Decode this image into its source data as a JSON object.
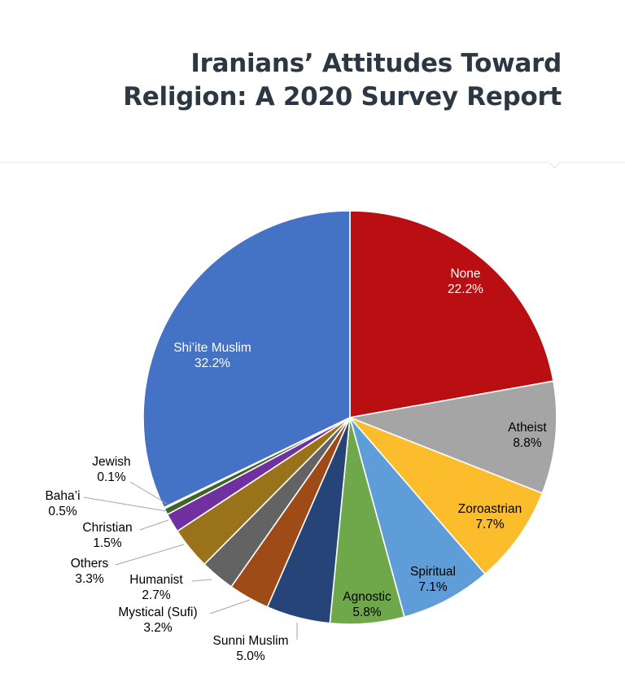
{
  "header": {
    "title_line1": "Iranians’ Attitudes Toward",
    "title_line2": "Religion: A 2020 Survey Report"
  },
  "chart_data": {
    "type": "pie",
    "title": "Iranians’ Attitudes Toward Religion: A 2020 Survey Report",
    "slices": [
      {
        "label": "None",
        "value": 22.2,
        "display": "22.2%",
        "color": "#b90e12",
        "label_color": "#ffffff"
      },
      {
        "label": "Atheist",
        "value": 8.8,
        "display": "8.8%",
        "color": "#a5a5a5",
        "label_color": "#000000"
      },
      {
        "label": "Zoroastrian",
        "value": 7.7,
        "display": "7.7%",
        "color": "#fbbd2c",
        "label_color": "#000000"
      },
      {
        "label": "Spiritual",
        "value": 7.1,
        "display": "7.1%",
        "color": "#5e9dd8",
        "label_color": "#000000"
      },
      {
        "label": "Agnostic",
        "value": 5.8,
        "display": "5.8%",
        "color": "#6fa84a",
        "label_color": "#000000"
      },
      {
        "label": "Sunni Muslim",
        "value": 5.0,
        "display": "5.0%",
        "color": "#264478",
        "label_color": "#000000"
      },
      {
        "label": "Mystical (Sufi)",
        "value": 3.2,
        "display": "3.2%",
        "color": "#9e4b18",
        "label_color": "#000000"
      },
      {
        "label": "Humanist",
        "value": 2.7,
        "display": "2.7%",
        "color": "#636363",
        "label_color": "#000000"
      },
      {
        "label": "Others",
        "value": 3.3,
        "display": "3.3%",
        "color": "#9a721a",
        "label_color": "#000000"
      },
      {
        "label": "Christian",
        "value": 1.5,
        "display": "1.5%",
        "color": "#7030a0",
        "label_color": "#000000"
      },
      {
        "label": "Baha’i",
        "value": 0.5,
        "display": "0.5%",
        "color": "#3f6427",
        "label_color": "#000000"
      },
      {
        "label": "Jewish",
        "value": 0.1,
        "display": "0.1%",
        "color": "#9ec3e6",
        "label_color": "#000000"
      },
      {
        "label": "Shi’ite Muslim",
        "value": 32.2,
        "display": "32.2%",
        "color": "#4472c4",
        "label_color": "#ffffff"
      }
    ]
  }
}
